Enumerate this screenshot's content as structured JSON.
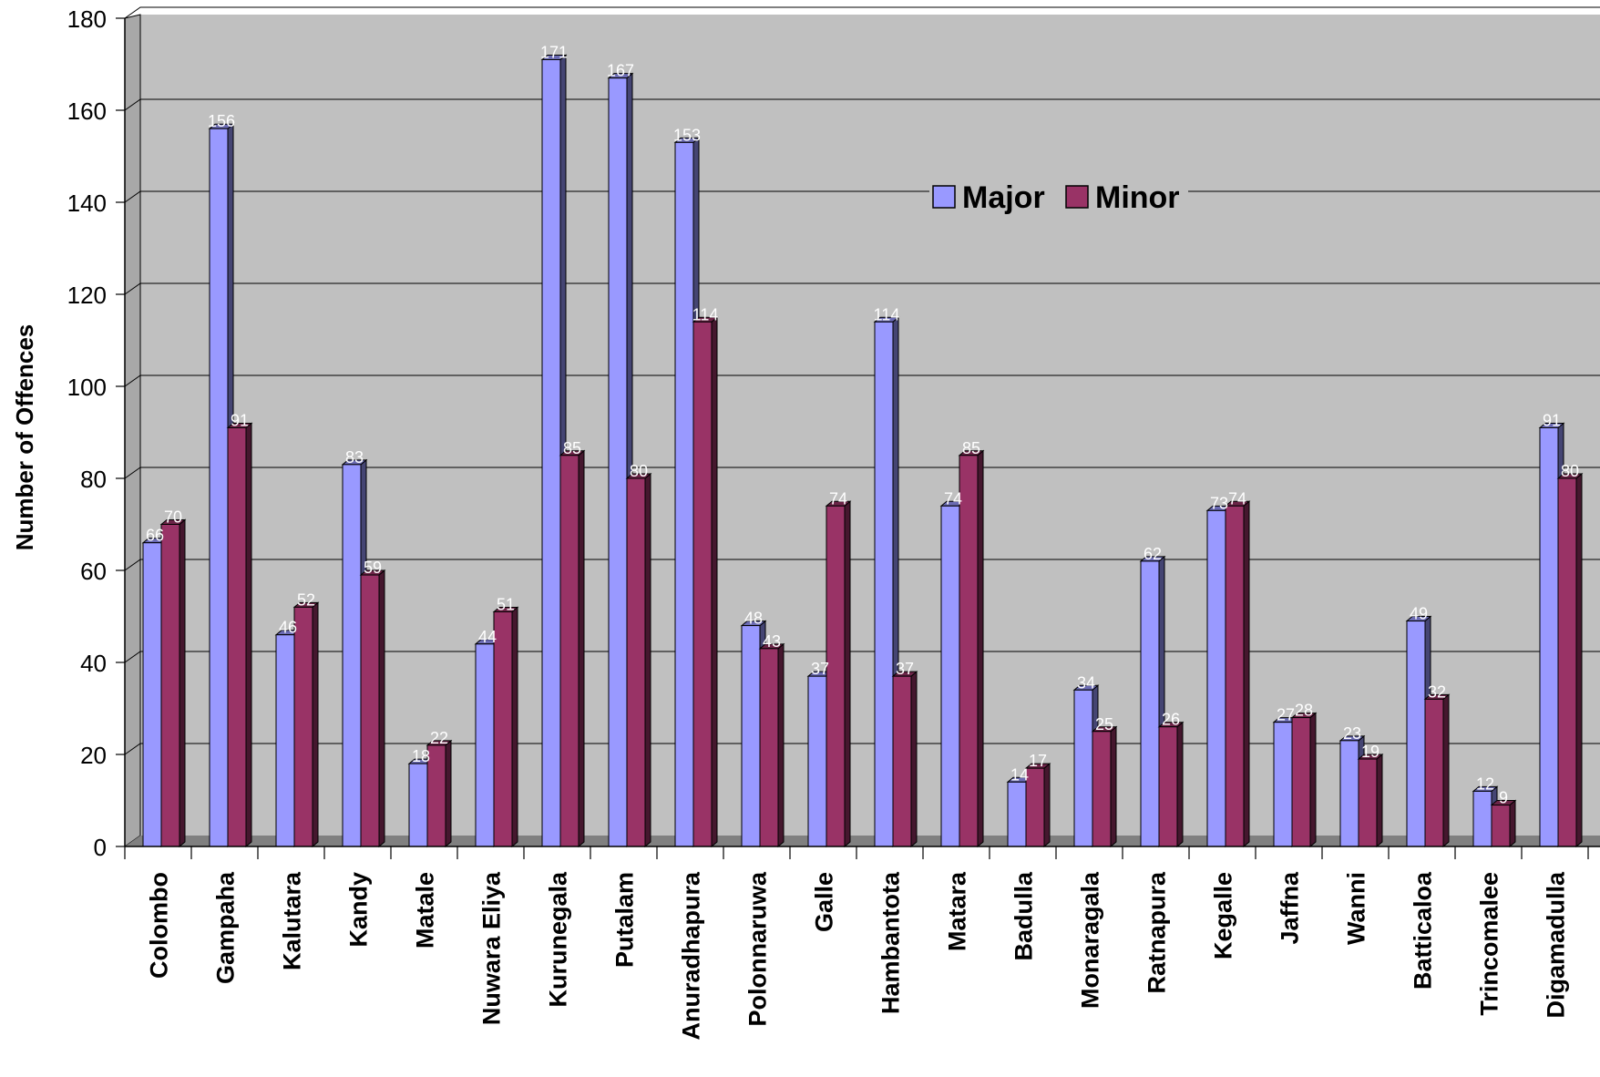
{
  "chart_data": {
    "type": "bar",
    "title": "",
    "xlabel": "",
    "ylabel": "Number of Offences",
    "ylim": [
      0,
      180
    ],
    "yticks": [
      0,
      20,
      40,
      60,
      80,
      100,
      120,
      140,
      160,
      180
    ],
    "grid": true,
    "legend_position": "top-center",
    "categories": [
      "Colombo",
      "Gampaha",
      "Kalutara",
      "Kandy",
      "Matale",
      "Nuwara Eliya",
      "Kurunegala",
      "Putalam",
      "Anuradhapura",
      "Polonnaruwa",
      "Galle",
      "Hambantota",
      "Matara",
      "Badulla",
      "Monaragala",
      "Ratnapura",
      "Kegalle",
      "Jaffna",
      "Wanni",
      "Batticaloa",
      "Trincomalee",
      "Digamadulla"
    ],
    "series": [
      {
        "name": "Major",
        "color": "#9999ff",
        "values": [
          66,
          156,
          46,
          83,
          18,
          44,
          171,
          167,
          153,
          48,
          37,
          114,
          74,
          14,
          34,
          62,
          73,
          27,
          23,
          49,
          12,
          91
        ]
      },
      {
        "name": "Minor",
        "color": "#993366",
        "values": [
          70,
          91,
          52,
          59,
          22,
          51,
          85,
          80,
          114,
          43,
          74,
          37,
          85,
          17,
          25,
          26,
          74,
          28,
          19,
          32,
          9,
          80
        ]
      }
    ],
    "colors": {
      "plot_wall": "#c0c0c0",
      "floor": "#808080",
      "gridline": "#000000"
    }
  }
}
